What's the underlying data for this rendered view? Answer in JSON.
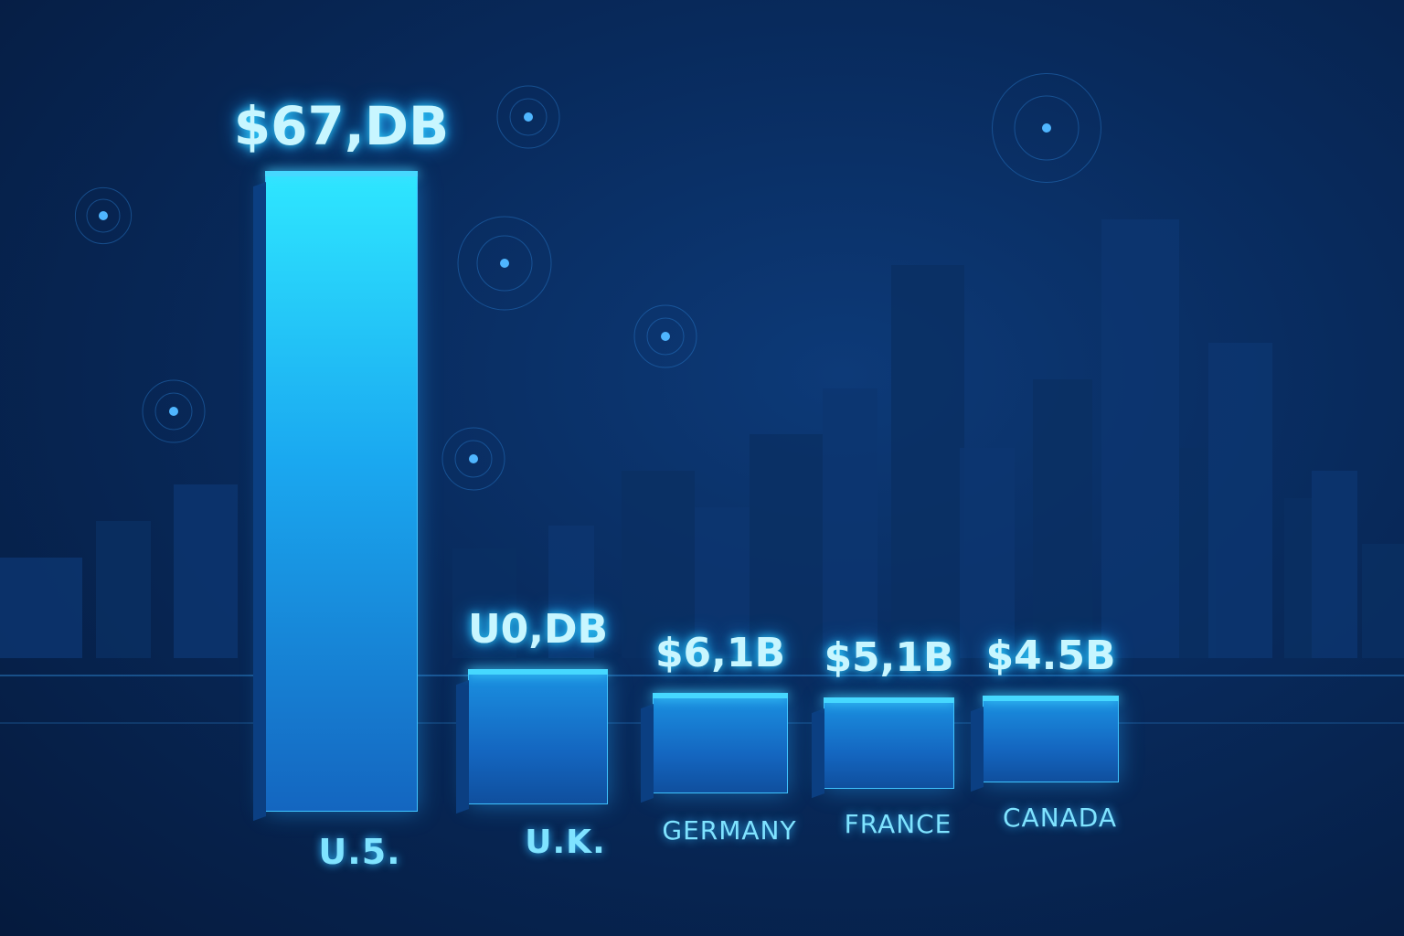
{
  "chart_data": {
    "type": "bar",
    "title": "",
    "xlabel": "",
    "ylabel": "",
    "categories": [
      "U.5.",
      "U.K.",
      "GERMANY",
      "FRANCE",
      "CANADA"
    ],
    "value_labels": [
      "$67,DB",
      "U0,DB",
      "$6,1B",
      "$5,1B",
      "$4.5B"
    ],
    "values": [
      67.0,
      10.0,
      6.1,
      5.1,
      4.5
    ],
    "unit": "billion USD",
    "grid": false,
    "legend": "none",
    "highlight_color": "#2ee6ff",
    "bar_color": "#1466c0"
  }
}
